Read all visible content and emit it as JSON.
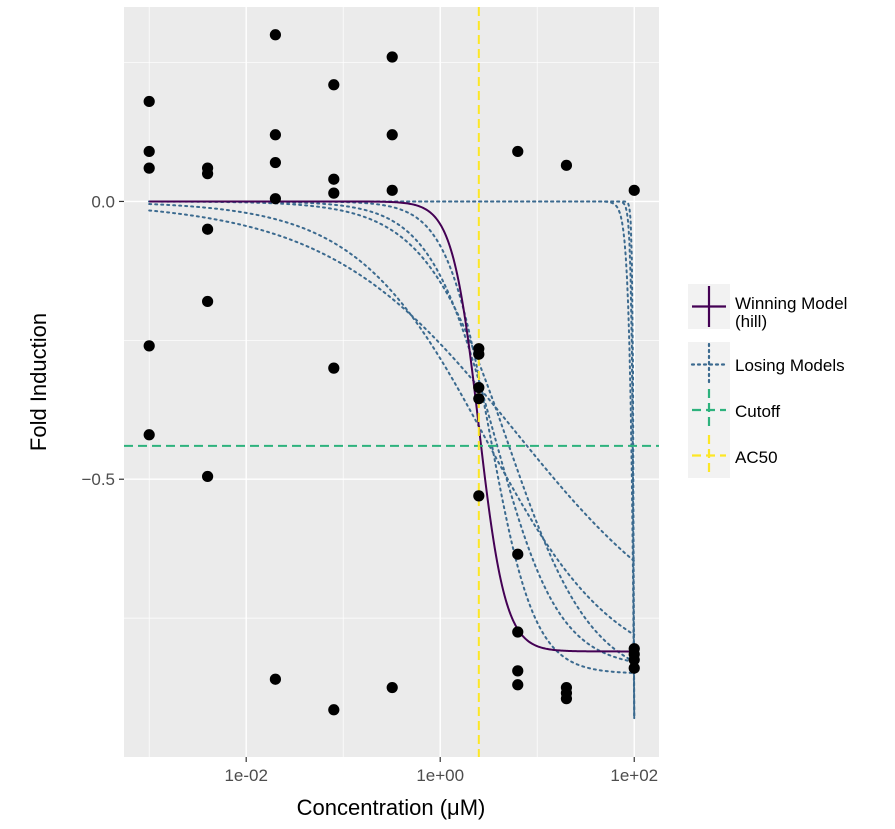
{
  "chart_data": {
    "type": "scatter",
    "xlabel": "Concentration (μM)",
    "ylabel": "Fold Induction",
    "x_scale": "log10",
    "xlim": [
      0.00055,
      180
    ],
    "ylim": [
      -1.0,
      0.35
    ],
    "grid": true,
    "x_ticks": [
      {
        "value": 0.01,
        "label": "1e-02"
      },
      {
        "value": 1,
        "label": "1e+00"
      },
      {
        "value": 100,
        "label": "1e+02"
      }
    ],
    "y_ticks": [
      {
        "value": 0.0,
        "label": "0.0"
      },
      {
        "value": -0.5,
        "label": "−0.5"
      }
    ],
    "points": [
      {
        "x": 0.001,
        "y": 0.18
      },
      {
        "x": 0.001,
        "y": 0.09
      },
      {
        "x": 0.001,
        "y": 0.06
      },
      {
        "x": 0.001,
        "y": -0.26
      },
      {
        "x": 0.001,
        "y": -0.42
      },
      {
        "x": 0.004,
        "y": 0.06
      },
      {
        "x": 0.004,
        "y": 0.05
      },
      {
        "x": 0.004,
        "y": -0.05
      },
      {
        "x": 0.004,
        "y": -0.18
      },
      {
        "x": 0.004,
        "y": -0.495
      },
      {
        "x": 0.02,
        "y": 0.3
      },
      {
        "x": 0.02,
        "y": 0.12
      },
      {
        "x": 0.02,
        "y": 0.07
      },
      {
        "x": 0.02,
        "y": 0.005
      },
      {
        "x": 0.02,
        "y": -0.86
      },
      {
        "x": 0.08,
        "y": 0.21
      },
      {
        "x": 0.08,
        "y": 0.04
      },
      {
        "x": 0.08,
        "y": 0.015
      },
      {
        "x": 0.08,
        "y": -0.3
      },
      {
        "x": 0.08,
        "y": -0.915
      },
      {
        "x": 0.32,
        "y": 0.26
      },
      {
        "x": 0.32,
        "y": 0.12
      },
      {
        "x": 0.32,
        "y": 0.02
      },
      {
        "x": 0.32,
        "y": -0.875
      },
      {
        "x": 2.5,
        "y": -0.265
      },
      {
        "x": 2.5,
        "y": -0.275
      },
      {
        "x": 2.5,
        "y": -0.335
      },
      {
        "x": 2.5,
        "y": -0.355
      },
      {
        "x": 2.5,
        "y": -0.53
      },
      {
        "x": 6.3,
        "y": 0.09
      },
      {
        "x": 6.3,
        "y": -0.635
      },
      {
        "x": 6.3,
        "y": -0.775
      },
      {
        "x": 6.3,
        "y": -0.845
      },
      {
        "x": 6.3,
        "y": -0.87
      },
      {
        "x": 20,
        "y": 0.065
      },
      {
        "x": 20,
        "y": -0.875
      },
      {
        "x": 20,
        "y": -0.885
      },
      {
        "x": 20,
        "y": -0.895
      },
      {
        "x": 100,
        "y": 0.02
      },
      {
        "x": 100,
        "y": -0.805
      },
      {
        "x": 100,
        "y": -0.815
      },
      {
        "x": 100,
        "y": -0.825
      },
      {
        "x": 100,
        "y": -0.84
      }
    ],
    "winning_model": {
      "type": "hill",
      "top": -0.81,
      "ac50": 2.5,
      "n": 3.2,
      "color": "#440154"
    },
    "losing_models": [
      {
        "type": "hill",
        "top": -0.85,
        "ac50": 3.3,
        "n": 1.9
      },
      {
        "type": "hill",
        "top": -0.84,
        "ac50": 3.6,
        "n": 1.3
      },
      {
        "type": "hill",
        "top": -0.87,
        "ac50": 5.0,
        "n": 1.0
      },
      {
        "type": "hill",
        "top": -0.86,
        "ac50": 3.0,
        "n": 0.65
      },
      {
        "type": "hill",
        "top": -0.83,
        "ac50": 6.0,
        "n": 0.45
      },
      {
        "type": "power",
        "a": 0.93,
        "lambda": 0.026,
        "pmax": 100
      },
      {
        "type": "power",
        "a": 0.93,
        "lambda": 0.045,
        "pmax": 100
      },
      {
        "type": "power",
        "a": 0.93,
        "lambda": 0.09,
        "pmax": 100
      }
    ],
    "losing_color": "#3b6a8f",
    "cutoff": {
      "y": -0.44,
      "color": "#2db27d"
    },
    "ac50": {
      "x": 2.5,
      "color": "#fde725"
    },
    "legend": {
      "position": "right",
      "entries": [
        {
          "label": "Winning Model",
          "label2": "(hill)",
          "color": "#440154",
          "style": "solid"
        },
        {
          "label": "Losing Models",
          "label2": "",
          "color": "#3b6a8f",
          "style": "dotted"
        },
        {
          "label": "Cutoff",
          "label2": "",
          "color": "#2db27d",
          "style": "dashed"
        },
        {
          "label": "AC50",
          "label2": "",
          "color": "#fde725",
          "style": "dashed"
        }
      ]
    }
  }
}
